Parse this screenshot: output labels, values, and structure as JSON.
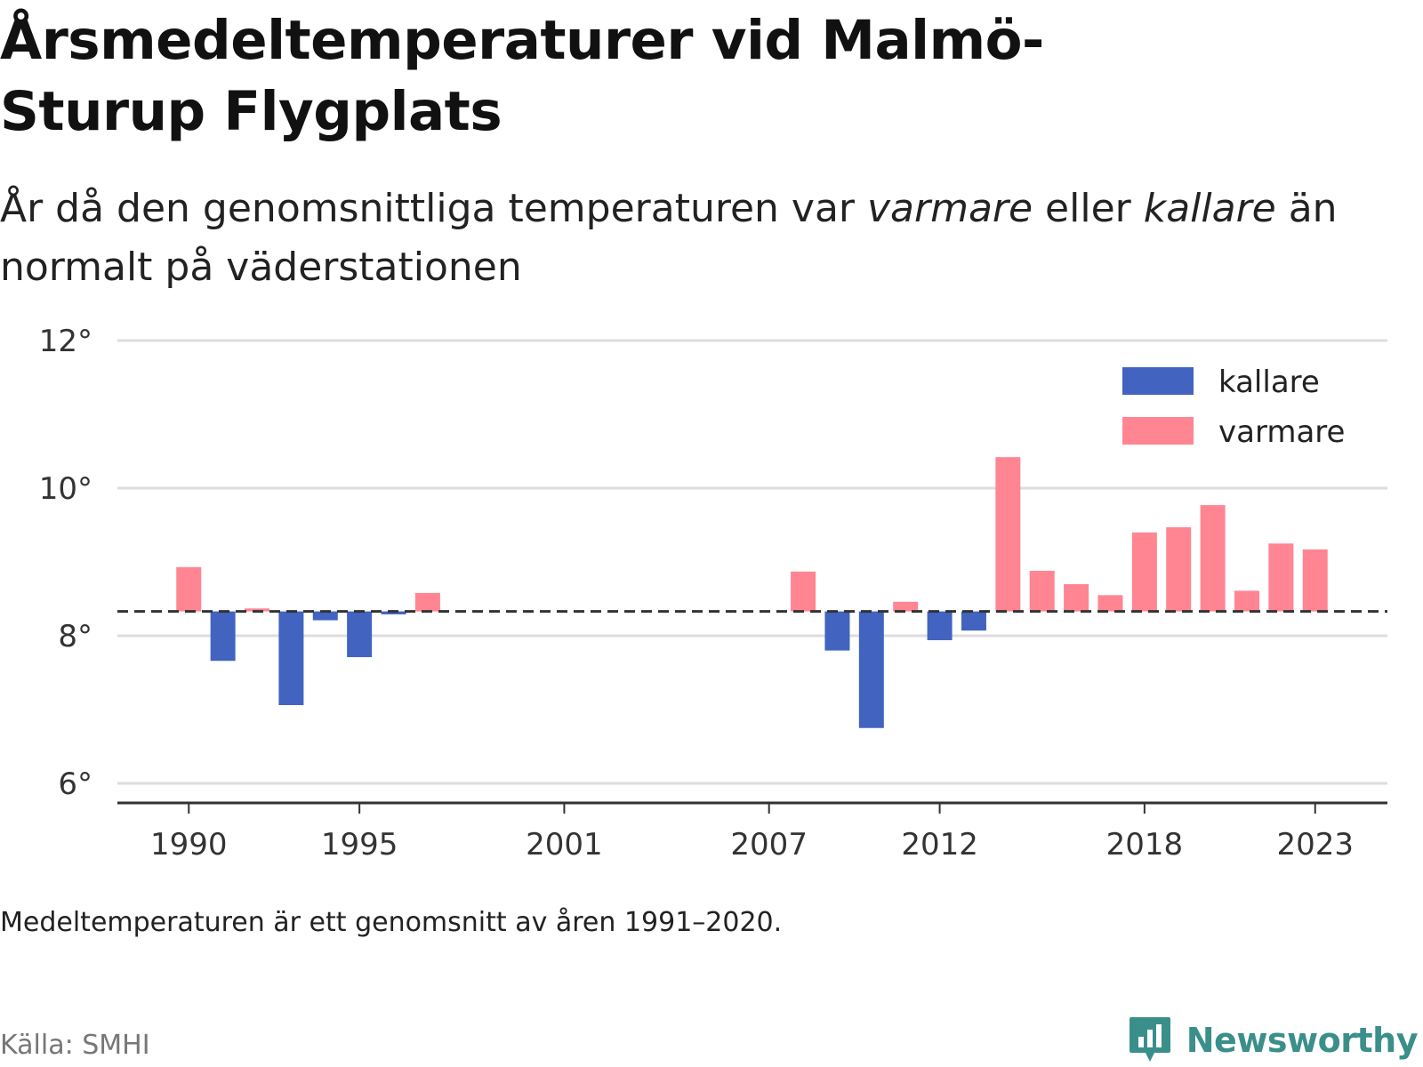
{
  "title": "Årsmedeltemperaturer vid Malmö-Sturup Flygplats",
  "subtitle": {
    "part1": "År då den genomsnittliga temperaturen var ",
    "warm_word": "varmare",
    "part2": " eller ",
    "cold_word": "kallare",
    "part3": " än normalt på väderstationen"
  },
  "note": "Medeltemperaturen är ett genomsnitt av åren 1991–2020.",
  "source": "Källa: SMHI",
  "brand": "Newsworthy",
  "colors": {
    "cold": "#4264c0",
    "warm": "#ff8593",
    "grid": "#dddddd",
    "axis": "#333333",
    "reference": "#333333",
    "brand": "#3a8f8a"
  },
  "chart_data": {
    "type": "bar",
    "baseline": 8.33,
    "ylim": [
      6,
      12
    ],
    "yticks": [
      6,
      8,
      10,
      12
    ],
    "ytick_labels": [
      "6°",
      "8°",
      "10°",
      "12°"
    ],
    "xlim": [
      1988,
      2025
    ],
    "xticks": [
      1990,
      1995,
      2001,
      2007,
      2012,
      2018,
      2023
    ],
    "xtick_labels": [
      "1990",
      "1995",
      "2001",
      "2007",
      "2012",
      "2018",
      "2023"
    ],
    "legend": [
      {
        "key": "cold",
        "label": "kallare"
      },
      {
        "key": "warm",
        "label": "varmare"
      }
    ],
    "legend_position": "top-right",
    "grid": true,
    "years": [
      1990,
      1991,
      1992,
      1993,
      1994,
      1995,
      1996,
      1997,
      2008,
      2009,
      2010,
      2011,
      2012,
      2013,
      2014,
      2015,
      2016,
      2017,
      2018,
      2019,
      2020,
      2021,
      2022,
      2023
    ],
    "values": [
      8.93,
      7.66,
      8.37,
      7.06,
      8.21,
      7.71,
      8.29,
      8.58,
      8.87,
      7.8,
      6.75,
      8.46,
      7.94,
      8.07,
      10.42,
      8.88,
      8.7,
      8.55,
      9.4,
      9.47,
      9.77,
      8.61,
      9.25,
      9.17
    ]
  }
}
